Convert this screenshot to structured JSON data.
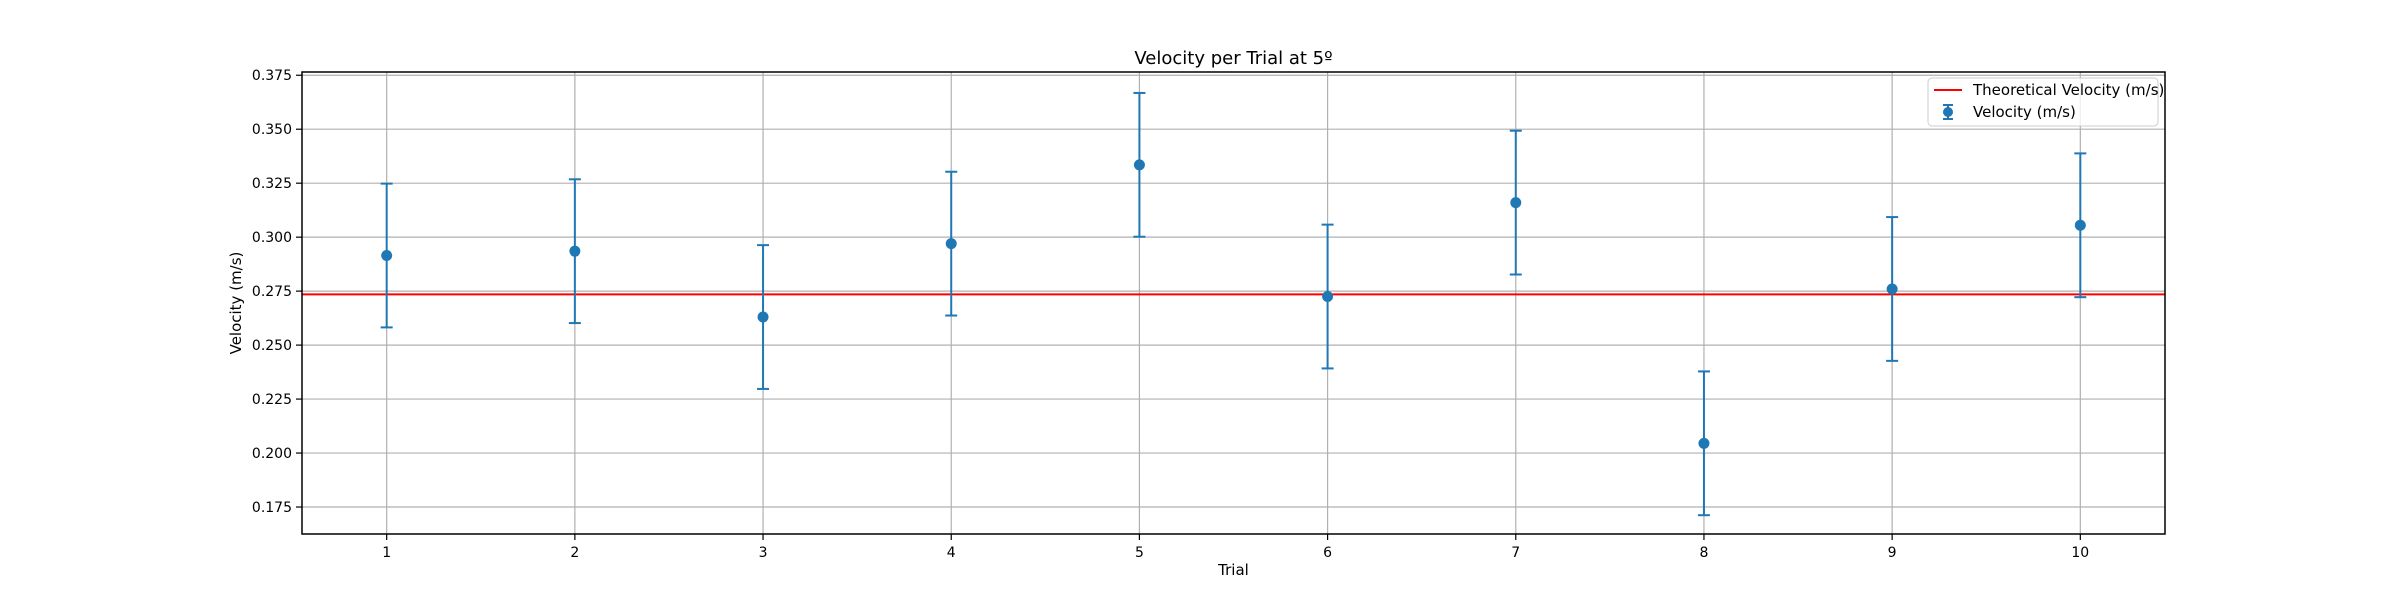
{
  "chart_data": {
    "type": "scatter",
    "title": "Velocity per Trial at 5º",
    "xlabel": "Trial",
    "ylabel": "Velocity (m/s)",
    "xlim": [
      0.55,
      10.45
    ],
    "ylim": [
      0.1625,
      0.3765
    ],
    "x_ticks": [
      1,
      2,
      3,
      4,
      5,
      6,
      7,
      8,
      9,
      10
    ],
    "y_ticks": [
      "0.175",
      "0.200",
      "0.225",
      "0.250",
      "0.275",
      "0.300",
      "0.325",
      "0.350",
      "0.375"
    ],
    "grid": true,
    "legend_position": "top-right",
    "series": [
      {
        "name": "Velocity (m/s)",
        "color": "#1f77b4",
        "marker": "circle",
        "x": [
          1,
          2,
          3,
          4,
          5,
          6,
          7,
          8,
          9,
          10
        ],
        "y": [
          0.2915,
          0.2935,
          0.263,
          0.297,
          0.3335,
          0.2725,
          0.316,
          0.2045,
          0.276,
          0.3055
        ],
        "yerr": [
          0.0333,
          0.0333,
          0.0333,
          0.0333,
          0.0333,
          0.0333,
          0.0333,
          0.0333,
          0.0333,
          0.0333
        ]
      }
    ],
    "reference_lines": [
      {
        "name": "Theoretical Velocity (m/s)",
        "y": 0.2735,
        "color": "#ff0000"
      }
    ]
  }
}
